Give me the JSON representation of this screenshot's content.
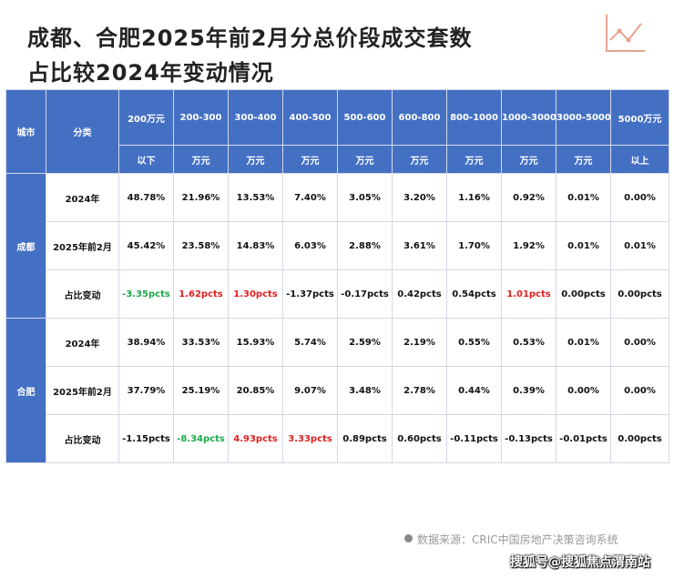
{
  "title": {
    "line1": "成都、合肥2025年前2月分总价段成交套数",
    "line2": "占比较2024年变动情况"
  },
  "logo_icon": "line-chart-icon",
  "colors": {
    "header_bg": "#4470c4",
    "increase": "#e02020",
    "decrease": "#1fa84b"
  },
  "table": {
    "col_city": "城市",
    "col_category": "分类",
    "price_bands": [
      {
        "top": "200万元",
        "bottom": "以下"
      },
      {
        "top": "200-300",
        "bottom": "万元"
      },
      {
        "top": "300-400",
        "bottom": "万元"
      },
      {
        "top": "400-500",
        "bottom": "万元"
      },
      {
        "top": "500-600",
        "bottom": "万元"
      },
      {
        "top": "600-800",
        "bottom": "万元"
      },
      {
        "top": "800-1000",
        "bottom": "万元"
      },
      {
        "top": "1000-3000",
        "bottom": "万元"
      },
      {
        "top": "3000-5000",
        "bottom": "万元"
      },
      {
        "top": "5000万元",
        "bottom": "以上"
      }
    ],
    "cities": [
      {
        "name": "成都",
        "rows": [
          {
            "category": "2024年",
            "values": [
              "48.78%",
              "21.96%",
              "13.53%",
              "7.40%",
              "3.05%",
              "3.20%",
              "1.16%",
              "0.92%",
              "0.01%",
              "0.00%"
            ],
            "colors": [
              "",
              "",
              "",
              "",
              "",
              "",
              "",
              "",
              "",
              ""
            ]
          },
          {
            "category": "2025年前2月",
            "values": [
              "45.42%",
              "23.58%",
              "14.83%",
              "6.03%",
              "2.88%",
              "3.61%",
              "1.70%",
              "1.92%",
              "0.01%",
              "0.01%"
            ],
            "colors": [
              "",
              "",
              "",
              "",
              "",
              "",
              "",
              "",
              "",
              ""
            ]
          },
          {
            "category": "占比变动",
            "values": [
              "-3.35pcts",
              "1.62pcts",
              "1.30pcts",
              "-1.37pcts",
              "-0.17pcts",
              "0.42pcts",
              "0.54pcts",
              "1.01pcts",
              "0.00pcts",
              "0.00pcts"
            ],
            "colors": [
              "green",
              "red",
              "red",
              "",
              "",
              "",
              "",
              "red",
              "",
              ""
            ]
          }
        ]
      },
      {
        "name": "合肥",
        "rows": [
          {
            "category": "2024年",
            "values": [
              "38.94%",
              "33.53%",
              "15.93%",
              "5.74%",
              "2.59%",
              "2.19%",
              "0.55%",
              "0.53%",
              "0.01%",
              "0.00%"
            ],
            "colors": [
              "",
              "",
              "",
              "",
              "",
              "",
              "",
              "",
              "",
              ""
            ]
          },
          {
            "category": "2025年前2月",
            "values": [
              "37.79%",
              "25.19%",
              "20.85%",
              "9.07%",
              "3.48%",
              "2.78%",
              "0.44%",
              "0.39%",
              "0.00%",
              "0.00%"
            ],
            "colors": [
              "",
              "",
              "",
              "",
              "",
              "",
              "",
              "",
              "",
              ""
            ]
          },
          {
            "category": "占比变动",
            "values": [
              "-1.15pcts",
              "-8.34pcts",
              "4.93pcts",
              "3.33pcts",
              "0.89pcts",
              "0.60pcts",
              "-0.11pcts",
              "-0.13pcts",
              "-0.01pcts",
              "0.00pcts"
            ],
            "colors": [
              "",
              "green",
              "red",
              "red",
              "",
              "",
              "",
              "",
              "",
              ""
            ]
          }
        ]
      }
    ]
  },
  "footer": {
    "source": "数据来源：CRIC中国房地产决策咨询系统",
    "watermark": "搜狐号@搜狐焦点渭南站"
  }
}
